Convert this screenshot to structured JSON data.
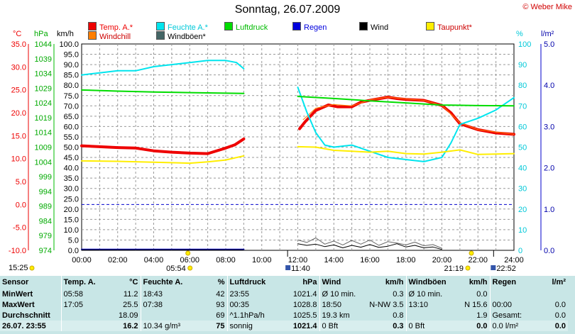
{
  "title": "Sonntag, 26.07.2009",
  "credit": "© Weber Mike",
  "legend": [
    {
      "label": "Temp. A.*",
      "color": "#ee0000",
      "text_color": "#ee0000"
    },
    {
      "label": "Feuchte A.*",
      "color": "#00e5ee",
      "text_color": "#00c8d8"
    },
    {
      "label": "Luftdruck",
      "color": "#00dd00",
      "text_color": "#00bb00"
    },
    {
      "label": "Regen",
      "color": "#0000dd",
      "text_color": "#0000dd"
    },
    {
      "label": "Wind",
      "color": "#000000",
      "text_color": "#000000"
    },
    {
      "label": "Taupunkt*",
      "color": "#ffee00",
      "text_color": "#cc0000"
    },
    {
      "label": "Windchill",
      "color": "#ff7f00",
      "text_color": "#cc0000"
    },
    {
      "label": "Windböen*",
      "color": "#446666",
      "text_color": "#000000"
    }
  ],
  "axes": {
    "temp_unit": "°C",
    "pressure_unit": "hPa",
    "wind_unit": "km/h",
    "humidity_unit": "%",
    "rain_unit": "l/m²",
    "temp_ticks": [
      "35.0",
      "30.0",
      "25.0",
      "20.0",
      "15.0",
      "10.0",
      "5.0",
      "0.0",
      "-5.0",
      "-10.0"
    ],
    "pressure_ticks": [
      "1044",
      "1039",
      "1034",
      "1029",
      "1024",
      "1019",
      "1014",
      "1009",
      "1004",
      "999",
      "994",
      "989",
      "984",
      "979",
      "974"
    ],
    "wind_ticks": [
      "100.0",
      "95.0",
      "90.0",
      "85.0",
      "80.0",
      "75.0",
      "70.0",
      "65.0",
      "60.0",
      "55.0",
      "50.0",
      "45.0",
      "40.0",
      "35.0",
      "30.0",
      "25.0",
      "20.0",
      "15.0",
      "10.0",
      "5.0",
      "0.0"
    ],
    "humidity_ticks": [
      "100",
      "90",
      "80",
      "70",
      "60",
      "50",
      "40",
      "30",
      "20",
      "10",
      "0"
    ],
    "rain_ticks": [
      "5.0",
      "4.0",
      "3.0",
      "2.0",
      "1.0",
      "0.0"
    ],
    "x_ticks": [
      "00:00",
      "02:00",
      "04:00",
      "06:00",
      "08:00",
      "10:00",
      "12:00",
      "14:00",
      "16:00",
      "18:00",
      "20:00",
      "22:00",
      "24:00"
    ]
  },
  "events": [
    {
      "label": "15:25",
      "x_hours": 0.0,
      "kind": "sun"
    },
    {
      "label": "05:54",
      "x_hours": 5.9,
      "kind": "sunrise"
    },
    {
      "label": "11:40",
      "x_hours": 11.67,
      "kind": "noon"
    },
    {
      "label": "21:19",
      "x_hours": 21.32,
      "kind": "sunset"
    },
    {
      "label": "22:52",
      "x_hours": 22.87,
      "kind": "moon"
    }
  ],
  "chart_data": {
    "type": "line",
    "x_unit": "hours",
    "x_range": [
      0,
      24
    ],
    "series": [
      {
        "name": "Temp. A.*",
        "axis": "temp",
        "ylim": [
          -10,
          35
        ],
        "color": "#ee0000",
        "width": 4,
        "x": [
          0,
          1,
          2,
          3,
          4,
          5,
          6,
          7,
          8,
          8.5,
          9,
          "gap",
          12.1,
          12.4,
          13,
          13.7,
          14.2,
          15,
          15.5,
          16,
          17,
          17.5,
          18,
          19,
          20,
          20.5,
          21,
          22,
          23,
          24
        ],
        "y": [
          12.8,
          12.6,
          12.4,
          12.3,
          11.7,
          11.4,
          11.2,
          11.1,
          12.3,
          13.0,
          14.3,
          "gap",
          16.5,
          18.0,
          20.5,
          21.7,
          21.3,
          21.3,
          22.3,
          22.7,
          23.4,
          23.1,
          22.9,
          22.7,
          21.6,
          20.0,
          17.6,
          16.3,
          15.6,
          15.3
        ]
      },
      {
        "name": "Windchill",
        "axis": "temp",
        "ylim": [
          -10,
          35
        ],
        "color": "#ff7f00",
        "width": 1,
        "x": [
          12.3,
          13,
          14,
          15,
          16,
          17,
          18,
          19,
          20,
          21,
          22,
          23,
          24
        ],
        "y": [
          18.5,
          21.0,
          21.8,
          21.5,
          22.8,
          23.4,
          23.0,
          22.7,
          21.6,
          17.8,
          16.3,
          15.8,
          15.3
        ]
      },
      {
        "name": "Feuchte A.*",
        "axis": "humidity",
        "ylim": [
          0,
          100
        ],
        "color": "#00e5ee",
        "width": 2,
        "x": [
          0,
          1,
          2,
          3,
          4,
          5,
          6,
          7,
          8,
          8.6,
          9,
          "gap",
          12.0,
          12.5,
          13,
          13.5,
          14,
          15,
          16,
          17,
          18,
          19,
          20,
          20.5,
          21,
          22,
          23,
          24
        ],
        "y": [
          85,
          86,
          87,
          87,
          89,
          90,
          91,
          92,
          92,
          91,
          88,
          "gap",
          79,
          67,
          57,
          51,
          50,
          51,
          48,
          45,
          44,
          43,
          45,
          52,
          61,
          64,
          68,
          74
        ]
      },
      {
        "name": "Luftdruck",
        "axis": "pressure",
        "ylim": [
          974,
          1044
        ],
        "color": "#00dd00",
        "width": 2,
        "x": [
          0,
          2,
          4,
          6,
          8,
          9,
          "gap",
          12,
          14,
          16,
          18,
          20,
          22,
          24
        ],
        "y": [
          1028.4,
          1028.0,
          1027.7,
          1027.5,
          1027.3,
          1027.2,
          "gap",
          1026.2,
          1025.5,
          1024.7,
          1024.0,
          1023.3,
          1023.1,
          1023.0
        ]
      },
      {
        "name": "Taupunkt*",
        "axis": "temp",
        "ylim": [
          -10,
          35
        ],
        "color": "#ffee00",
        "width": 2,
        "x": [
          0,
          2,
          4,
          6,
          7,
          8,
          9,
          "gap",
          12,
          13,
          14,
          15,
          16,
          17,
          18,
          19,
          20,
          21,
          22,
          23,
          24
        ],
        "y": [
          9.5,
          9.4,
          9.2,
          9.0,
          9.3,
          9.7,
          10.6,
          "gap",
          12.6,
          12.5,
          11.8,
          11.6,
          11.4,
          11.6,
          11.1,
          11.0,
          11.4,
          11.9,
          10.9,
          11.0,
          11.1
        ]
      },
      {
        "name": "Regen",
        "axis": "rain",
        "ylim": [
          0,
          5
        ],
        "color": "#0000dd",
        "width": 2,
        "x": [
          0,
          2,
          4,
          6,
          8,
          9
        ],
        "y": [
          0.02,
          0.02,
          0.02,
          0.02,
          0.02,
          0.02
        ]
      },
      {
        "name": "Wind",
        "axis": "wind",
        "ylim": [
          0,
          100
        ],
        "color": "#000000",
        "width": 1,
        "x": [
          0,
          9,
          "gap",
          12,
          12.5,
          13,
          13.5,
          14,
          14.5,
          15,
          15.5,
          16,
          16.5,
          17,
          17.5,
          18,
          18.5,
          19,
          19.5,
          20
        ],
        "y": [
          0.3,
          0.3,
          "gap",
          3.2,
          2.4,
          3.0,
          1.8,
          2.6,
          1.2,
          2.4,
          1.5,
          2.8,
          1.4,
          2.0,
          3.2,
          1.6,
          2.4,
          1.2,
          1.6,
          0.4
        ]
      },
      {
        "name": "Windböen*",
        "axis": "wind",
        "ylim": [
          0,
          100
        ],
        "color": "#666666",
        "width": 1,
        "x": [
          12,
          12.5,
          13,
          13.5,
          14,
          14.5,
          15,
          15.5,
          16,
          16.5,
          17,
          17.5,
          18,
          18.5,
          19,
          19.5,
          20
        ],
        "y": [
          5.0,
          3.8,
          6.0,
          3.0,
          4.5,
          2.6,
          4.8,
          3.0,
          5.0,
          2.4,
          4.2,
          3.5,
          2.6,
          4.0,
          2.2,
          2.8,
          1.0
        ]
      }
    ],
    "reference_line": {
      "axis": "temp",
      "value": 0.0,
      "color": "#0000cc"
    }
  },
  "stats": {
    "headers": [
      "Sensor",
      "Temp. A.",
      "°C",
      "Feuchte A.",
      "%",
      "Luftdruck",
      "hPa",
      "Wind",
      "km/h",
      "Windböen",
      "km/h",
      "Regen",
      "l/m²"
    ],
    "rows": [
      [
        "MinWert",
        "05:58",
        "11.2",
        "18:43",
        "42",
        "23:55",
        "1021.4",
        "Ø 10 min.",
        "0.3",
        "Ø 10 min.",
        "0.0",
        "",
        ""
      ],
      [
        "MaxWert",
        "17:05",
        "25.5",
        "07:38",
        "93",
        "00:35",
        "1028.8",
        "18:50",
        "N-NW 3.5",
        "13:10",
        "N 15.6",
        "00:00",
        "0.0"
      ],
      [
        "Durchschnitt",
        "",
        "18.09",
        "",
        "69",
        "^1.1hPa/h",
        "1025.5",
        "19.3 km",
        "0.8",
        "",
        "1.9",
        "Gesamt:",
        "0.0"
      ],
      [
        "26.07. 23:55",
        "",
        "16.2",
        "10.34 g/m³",
        "75",
        "sonnig",
        "1021.4",
        "0 Bft",
        "0.3",
        "0 Bft",
        "0.0",
        "0.0 l/m²",
        "0.0"
      ]
    ]
  }
}
